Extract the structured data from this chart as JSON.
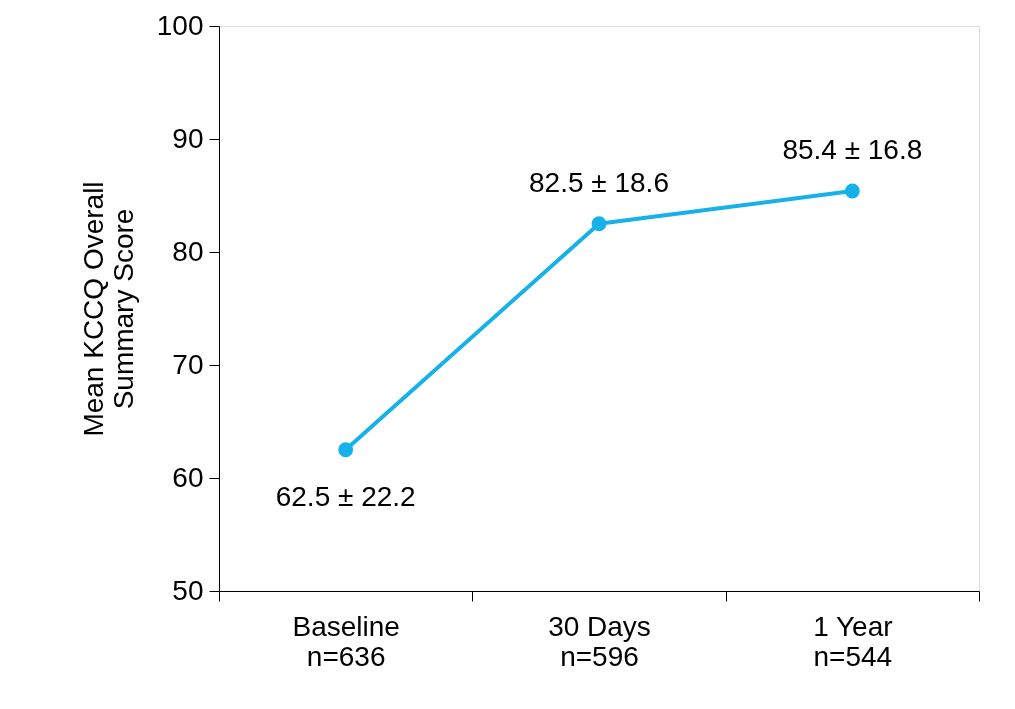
{
  "chart_data": {
    "type": "line",
    "ylabel": "Mean KCCQ Overall\nSummary Score",
    "categories": [
      "Baseline\nn=636",
      "30 Days\nn=596",
      "1 Year\nn=544"
    ],
    "series": [
      {
        "color": "#17b1e9",
        "values": [
          62.5,
          82.5,
          85.4
        ],
        "value_labels": [
          "62.5 ± 22.2",
          "82.5 ± 18.6",
          "85.4 ± 16.8"
        ]
      }
    ],
    "ylim": [
      50,
      100
    ],
    "yticks": [
      50,
      60,
      70,
      80,
      90,
      100
    ],
    "grid": false,
    "marker": "circle",
    "line_style": "solid"
  }
}
